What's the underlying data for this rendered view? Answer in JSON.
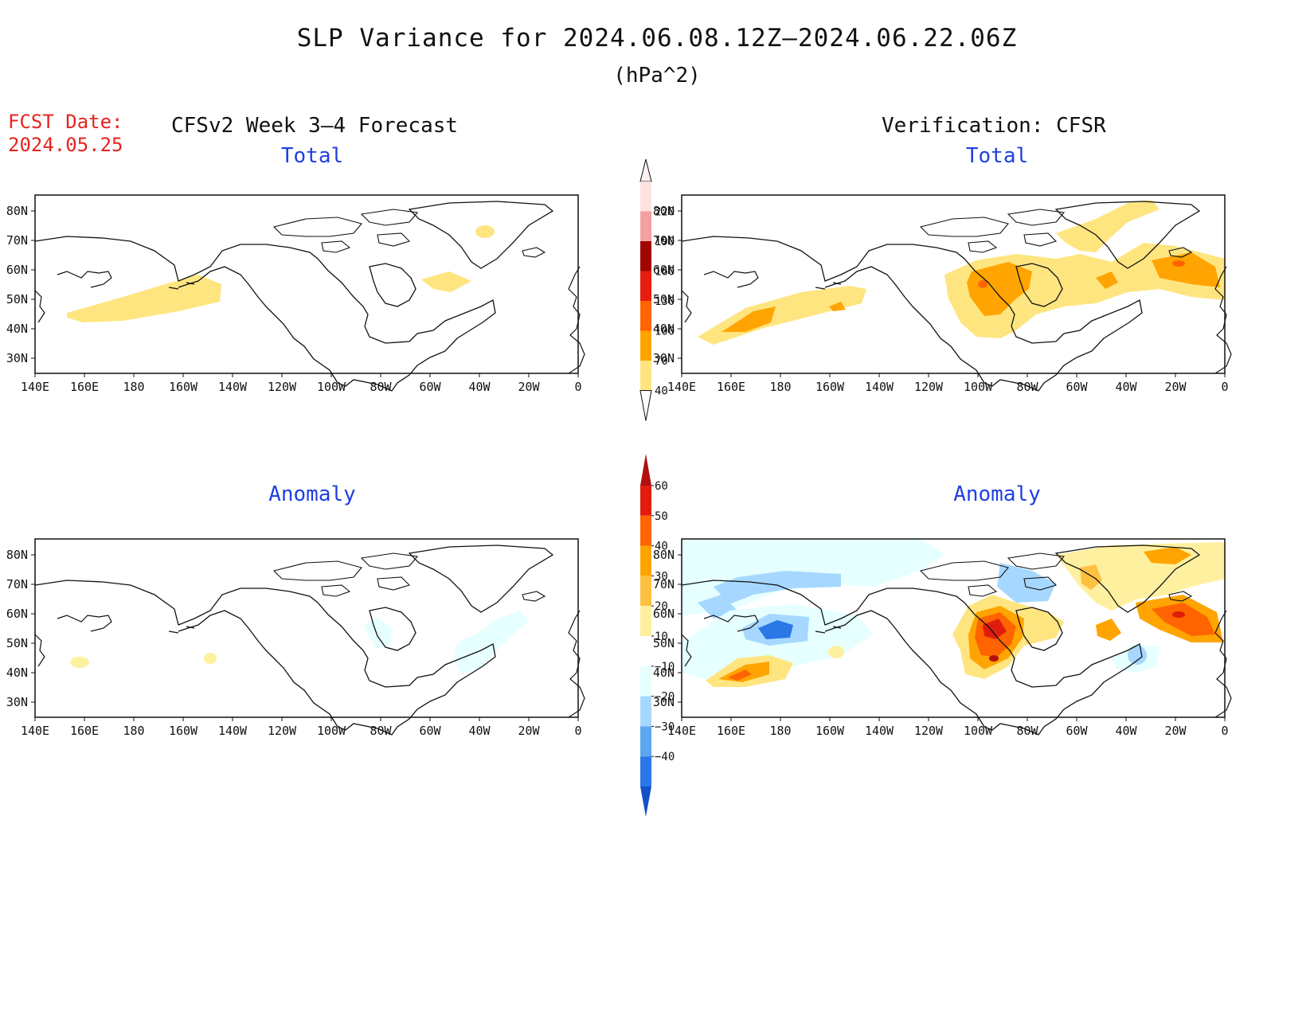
{
  "title": "SLP Variance for 2024.06.08.12Z–2024.06.22.06Z",
  "units": "(hPa^2)",
  "fcst_date_label": "FCST Date:",
  "fcst_date_value": "2024.05.25",
  "left_heading": "CFSv2 Week 3–4 Forecast",
  "right_heading": "Verification: CFSR",
  "panels": {
    "fcst_total_title": "Total",
    "obs_total_title": "Total",
    "fcst_anom_title": "Anomaly",
    "obs_anom_title": "Anomaly"
  },
  "map_axes": {
    "lon_labels": [
      "140E",
      "160E",
      "180",
      "160W",
      "140W",
      "120W",
      "100W",
      "80W",
      "60W",
      "40W",
      "20W",
      "0"
    ],
    "lat_labels": [
      "80N",
      "70N",
      "60N",
      "50N",
      "40N",
      "30N"
    ]
  },
  "colorbars": {
    "total": {
      "levels": [
        "40",
        "70",
        "100",
        "130",
        "160",
        "190",
        "220"
      ],
      "colors": [
        "#ffe580",
        "#ffa400",
        "#ff6400",
        "#e81d0e",
        "#a00500",
        "#f4a0a0",
        "#fde2e2"
      ]
    },
    "anomaly": {
      "levels": [
        "60",
        "50",
        "40",
        "30",
        "20",
        "10",
        "−10",
        "−20",
        "−30",
        "−40"
      ],
      "colors": [
        "#b01010",
        "#e01d0c",
        "#ff6400",
        "#ffa400",
        "#ffc040",
        "#fff0a0",
        "#ffffff",
        "#e6ffff",
        "#a6d8ff",
        "#5ca8f0",
        "#2a78e6",
        "#1450c8"
      ]
    }
  },
  "colors": {
    "fcst_date": "#e8231e",
    "panel_title": "#1f3fe0"
  }
}
